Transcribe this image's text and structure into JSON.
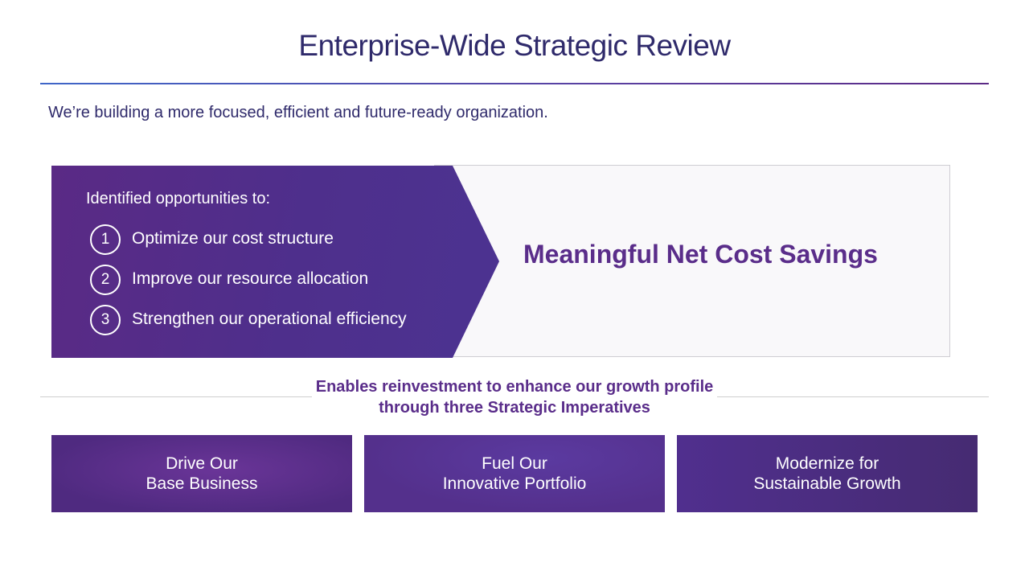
{
  "title": "Enterprise-Wide Strategic Review",
  "subtitle": "We’re building a more focused, efficient and future-ready organization.",
  "opportunities": {
    "heading": "Identified opportunities to:",
    "items": [
      {
        "number": "1",
        "label": "Optimize our cost structure"
      },
      {
        "number": "2",
        "label": "Improve our resource allocation"
      },
      {
        "number": "3",
        "label": "Strengthen our operational efficiency"
      }
    ]
  },
  "savings": {
    "label": "Meaningful Net Cost Savings"
  },
  "enables": {
    "text": "Enables reinvestment to enhance our growth profile through three Strategic Imperatives"
  },
  "imperatives": [
    {
      "label": "Drive Our\nBase Business"
    },
    {
      "label": "Fuel Our\nInnovative Portfolio"
    },
    {
      "label": "Modernize for\nSustainable Growth"
    }
  ],
  "colors": {
    "title": "#2f2a6b",
    "accent_purple": "#5a2d8a",
    "chevron_purple": "#4e2f8c",
    "rule_blue": "#3f66c8"
  }
}
